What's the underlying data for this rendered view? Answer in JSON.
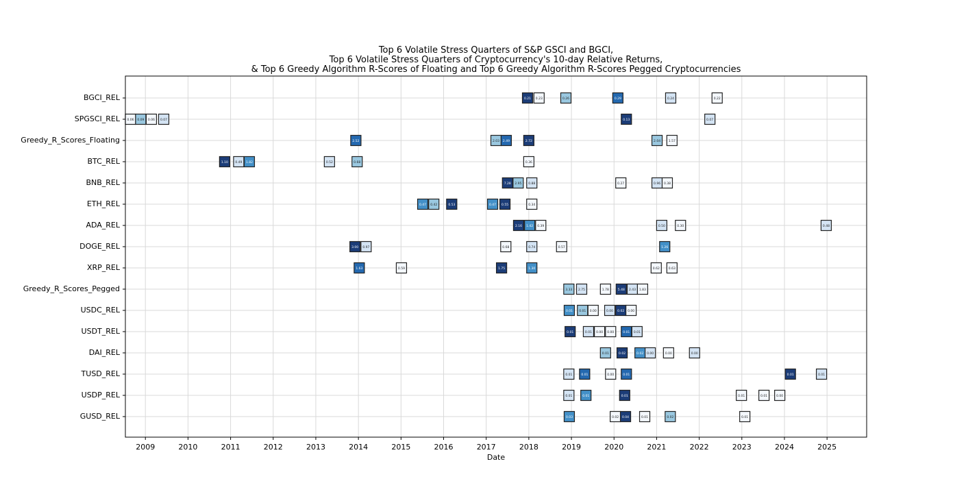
{
  "chart_data": {
    "type": "heatmap",
    "title": [
      "Top 6 Volatile Stress Quarters of S&P GSCI and BGCI,",
      "Top 6 Volatile Stress Quarters of Cryptocurrency's 10-day Relative Returns,",
      "& Top 6 Greedy Algorithm R-Scores of Floating and Top 6 Greedy Algorithm R-Scores Pegged Cryptocurrencies"
    ],
    "xlabel": "Date",
    "ylabel": "",
    "xlim": [
      2008.53,
      2025.93
    ],
    "x_ticks": [
      "2009",
      "2010",
      "2011",
      "2012",
      "2013",
      "2014",
      "2015",
      "2016",
      "2017",
      "2018",
      "2019",
      "2020",
      "2021",
      "2022",
      "2023",
      "2024",
      "2025"
    ],
    "grid": true,
    "colormap": "Blues",
    "shade_colors": {
      "dark": "#1c3d78",
      "darkblue": "#2469b0",
      "medium": "#4390c8",
      "light": "#9ac8e0",
      "verylight": "#d4e4f4",
      "white": "#f4f8fd"
    },
    "mark_fields": [
      "x_year",
      "label",
      "shade"
    ],
    "rows": [
      {
        "name": "BGCI_REL",
        "marks": [
          [
            2017.97,
            "0.21",
            "dark"
          ],
          [
            2018.24,
            "0.23",
            "white"
          ],
          [
            2018.87,
            "0.26",
            "light"
          ],
          [
            2020.09,
            "0.29",
            "darkblue"
          ],
          [
            2021.33,
            "0.24",
            "verylight"
          ],
          [
            2022.42,
            "0.22",
            "white"
          ]
        ]
      },
      {
        "name": "SPGSCI_REL",
        "marks": [
          [
            2008.65,
            "0.06",
            "white"
          ],
          [
            2008.89,
            "0.09",
            "light"
          ],
          [
            2009.14,
            "0.06",
            "white"
          ],
          [
            2009.43,
            "0.07",
            "verylight"
          ],
          [
            2020.29,
            "0.13",
            "dark"
          ],
          [
            2022.25,
            "0.07",
            "verylight"
          ]
        ]
      },
      {
        "name": "Greedy_R_Scores_Floating",
        "marks": [
          [
            2013.94,
            "2.52",
            "darkblue"
          ],
          [
            2017.23,
            "2.03",
            "light"
          ],
          [
            2017.47,
            "2.49",
            "darkblue"
          ],
          [
            2018.0,
            "2.72",
            "dark"
          ],
          [
            2021.01,
            "2.04",
            "light"
          ],
          [
            2021.36,
            "1.57",
            "white"
          ]
        ]
      },
      {
        "name": "BTC_REL",
        "marks": [
          [
            2010.86,
            "1.10",
            "dark"
          ],
          [
            2011.19,
            "0.49",
            "verylight"
          ],
          [
            2011.44,
            "1.82",
            "medium"
          ],
          [
            2013.32,
            "0.52",
            "verylight"
          ],
          [
            2013.97,
            "0.68",
            "light"
          ],
          [
            2018.0,
            "0.36",
            "white"
          ]
        ]
      },
      {
        "name": "BNB_REL",
        "marks": [
          [
            2017.5,
            "7.28",
            "dark"
          ],
          [
            2017.75,
            "2.95",
            "light"
          ],
          [
            2018.07,
            "0.88",
            "verylight"
          ],
          [
            2020.16,
            "0.27",
            "white"
          ],
          [
            2021.01,
            "0.96",
            "verylight"
          ],
          [
            2021.25,
            "0.38",
            "white"
          ]
        ]
      },
      {
        "name": "ETH_REL",
        "marks": [
          [
            2015.51,
            "0.47",
            "medium"
          ],
          [
            2015.77,
            "0.42",
            "light"
          ],
          [
            2016.19,
            "0.53",
            "dark"
          ],
          [
            2017.15,
            "0.47",
            "medium"
          ],
          [
            2017.44,
            "0.55",
            "dark"
          ],
          [
            2018.07,
            "0.34",
            "white"
          ]
        ]
      },
      {
        "name": "ADA_REL",
        "marks": [
          [
            2017.76,
            "2.16",
            "dark"
          ],
          [
            2018.02,
            "1.42",
            "medium"
          ],
          [
            2018.28,
            "0.39",
            "white"
          ],
          [
            2021.12,
            "0.50",
            "verylight"
          ],
          [
            2021.56,
            "0.30",
            "white"
          ],
          [
            2024.98,
            "0.48",
            "verylight"
          ]
        ]
      },
      {
        "name": "DOGE_REL",
        "marks": [
          [
            2013.92,
            "3.00",
            "dark"
          ],
          [
            2014.18,
            "0.97",
            "verylight"
          ],
          [
            2017.46,
            "0.68",
            "white"
          ],
          [
            2018.07,
            "0.74",
            "verylight"
          ],
          [
            2018.77,
            "0.57",
            "white"
          ],
          [
            2021.19,
            "1.26",
            "medium"
          ]
        ]
      },
      {
        "name": "XRP_REL",
        "marks": [
          [
            2014.02,
            "1.63",
            "darkblue"
          ],
          [
            2015.01,
            "0.59",
            "white"
          ],
          [
            2017.36,
            "1.75",
            "dark"
          ],
          [
            2018.07,
            "1.30",
            "medium"
          ],
          [
            2020.99,
            "0.62",
            "white"
          ],
          [
            2021.36,
            "0.63",
            "white"
          ]
        ]
      },
      {
        "name": "Greedy_R_Scores_Pegged",
        "marks": [
          [
            2018.94,
            "3.33",
            "light"
          ],
          [
            2019.24,
            "2.75",
            "verylight"
          ],
          [
            2019.8,
            "1.78",
            "white"
          ],
          [
            2020.17,
            "5.48",
            "dark"
          ],
          [
            2020.43,
            "2.43",
            "verylight"
          ],
          [
            2020.67,
            "1.83",
            "white"
          ]
        ]
      },
      {
        "name": "USDC_REL",
        "marks": [
          [
            2018.95,
            "0.01",
            "medium"
          ],
          [
            2019.26,
            "0.01",
            "light"
          ],
          [
            2019.51,
            "0.00",
            "white"
          ],
          [
            2019.9,
            "0.00",
            "verylight"
          ],
          [
            2020.16,
            "0.02",
            "dark"
          ],
          [
            2020.4,
            "0.00",
            "white"
          ]
        ]
      },
      {
        "name": "USDT_REL",
        "marks": [
          [
            2018.97,
            "0.01",
            "dark"
          ],
          [
            2019.4,
            "0.01",
            "verylight"
          ],
          [
            2019.66,
            "0.00",
            "white"
          ],
          [
            2019.92,
            "0.00",
            "white"
          ],
          [
            2020.29,
            "0.01",
            "darkblue"
          ],
          [
            2020.54,
            "0.01",
            "verylight"
          ]
        ]
      },
      {
        "name": "DAI_REL",
        "marks": [
          [
            2019.8,
            "0.01",
            "light"
          ],
          [
            2020.19,
            "0.02",
            "dark"
          ],
          [
            2020.61,
            "0.02",
            "medium"
          ],
          [
            2020.85,
            "0.00",
            "verylight"
          ],
          [
            2021.28,
            "0.00",
            "white"
          ],
          [
            2021.89,
            "0.00",
            "verylight"
          ]
        ]
      },
      {
        "name": "TUSD_REL",
        "marks": [
          [
            2018.94,
            "0.01",
            "verylight"
          ],
          [
            2019.31,
            "0.01",
            "darkblue"
          ],
          [
            2019.92,
            "0.00",
            "white"
          ],
          [
            2020.29,
            "0.01",
            "darkblue"
          ],
          [
            2024.14,
            "0.01",
            "dark"
          ],
          [
            2024.87,
            "0.01",
            "verylight"
          ]
        ]
      },
      {
        "name": "USDP_REL",
        "marks": [
          [
            2018.94,
            "0.01",
            "verylight"
          ],
          [
            2019.34,
            "0.01",
            "medium"
          ],
          [
            2020.25,
            "0.01",
            "dark"
          ],
          [
            2022.99,
            "0.01",
            "white"
          ],
          [
            2023.52,
            "0.01",
            "white"
          ],
          [
            2023.89,
            "0.00",
            "white"
          ]
        ]
      },
      {
        "name": "GUSD_REL",
        "marks": [
          [
            2018.95,
            "0.03",
            "medium"
          ],
          [
            2020.03,
            "0.02",
            "white"
          ],
          [
            2020.27,
            "0.04",
            "dark"
          ],
          [
            2020.72,
            "0.01",
            "white"
          ],
          [
            2021.32,
            "0.02",
            "light"
          ],
          [
            2023.07,
            "0.01",
            "white"
          ]
        ]
      }
    ]
  }
}
